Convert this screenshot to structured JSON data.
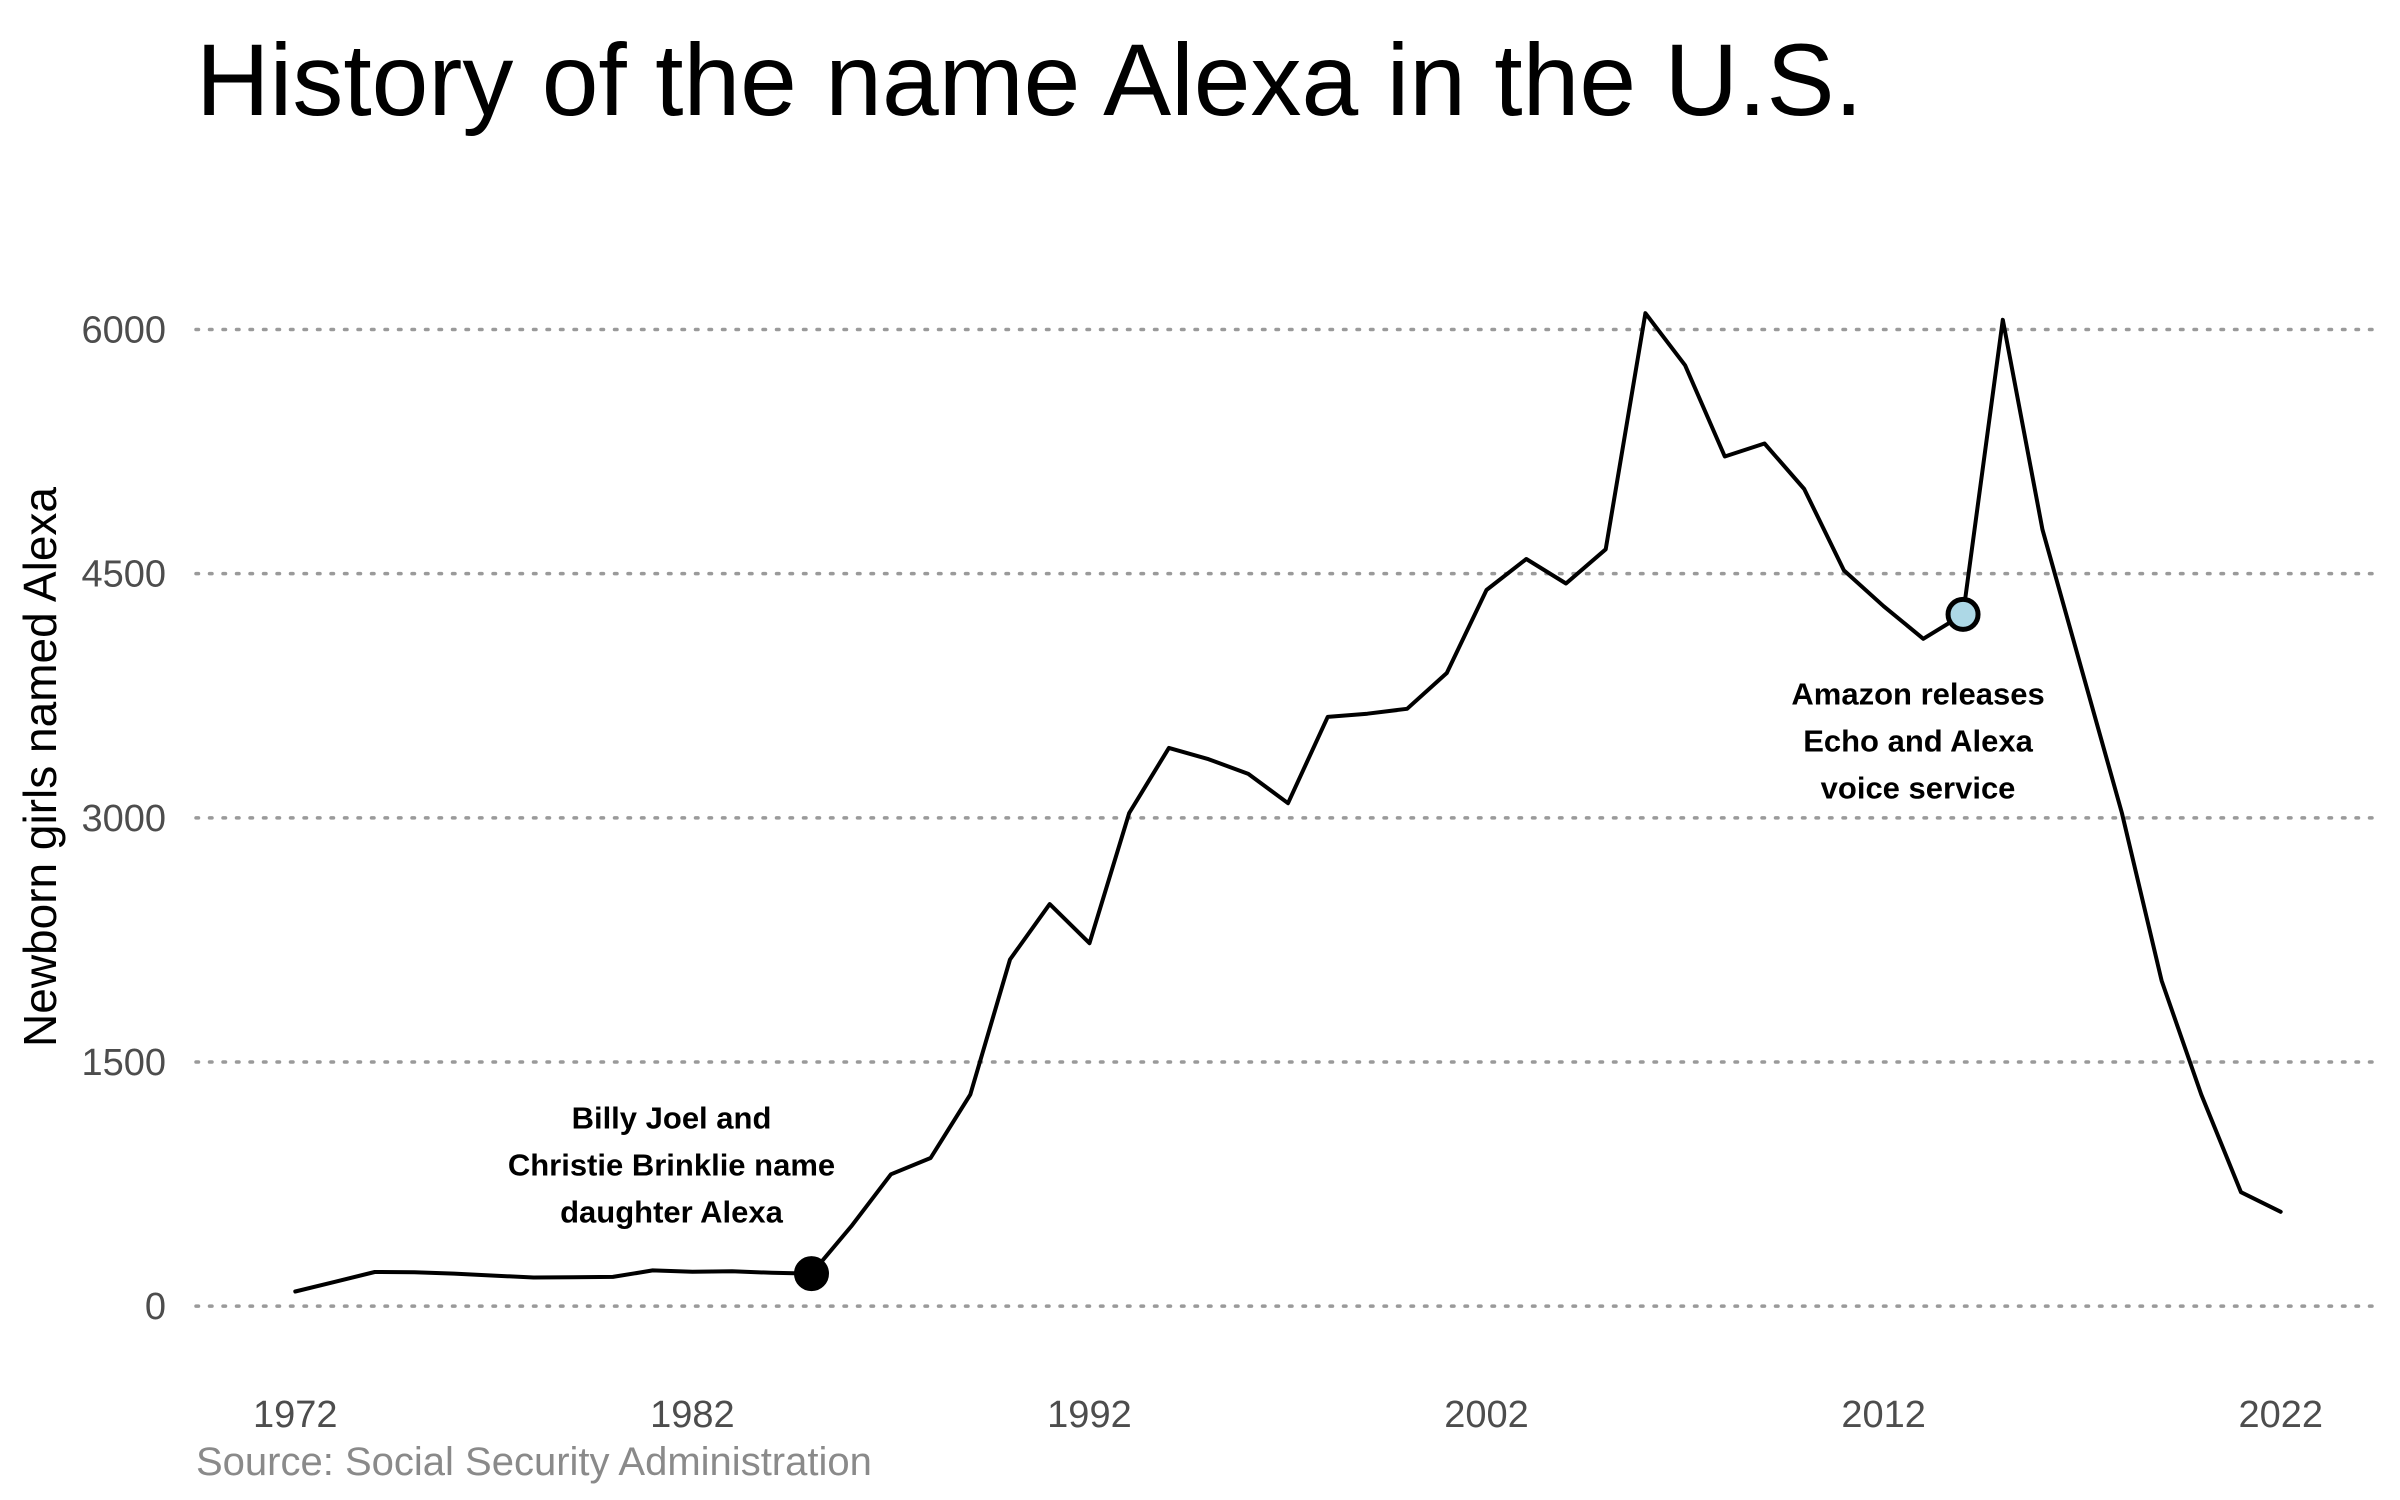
{
  "chart_data": {
    "type": "line",
    "title": "History of the name Alexa in the U.S.",
    "source": "Source: Social Security Administration",
    "xlabel": "",
    "ylabel": "Newborn girls named Alexa",
    "xlim": [
      1969.5,
      2024.5
    ],
    "ylim": [
      -300,
      6550
    ],
    "x_ticks": [
      1972,
      1982,
      1992,
      2002,
      2012,
      2022
    ],
    "y_ticks": [
      0,
      1500,
      3000,
      4500,
      6000
    ],
    "grid": "horizontal dotted",
    "line_color": "#000000",
    "series": [
      {
        "x": [
          1972,
          1973,
          1974,
          1975,
          1976,
          1977,
          1978,
          1979,
          1980,
          1981,
          1982,
          1983,
          1984,
          1985,
          1986,
          1987,
          1988,
          1989,
          1990,
          1991,
          1992,
          1993,
          1994,
          1995,
          1996,
          1997,
          1998,
          1999,
          2000,
          2001,
          2002,
          2003,
          2004,
          2005,
          2006,
          2007,
          2008,
          2009,
          2010,
          2011,
          2012,
          2013,
          2014,
          2015,
          2016,
          2017,
          2018,
          2019,
          2020,
          2021,
          2022
        ],
        "values": [
          90,
          150,
          210,
          208,
          200,
          188,
          176,
          178,
          180,
          220,
          212,
          215,
          205,
          200,
          490,
          810,
          910,
          1300,
          2130,
          2470,
          2230,
          3030,
          3430,
          3360,
          3270,
          3090,
          3620,
          3640,
          3670,
          3890,
          4400,
          4590,
          4440,
          4650,
          6100,
          5780,
          5220,
          5300,
          5020,
          4520,
          4300,
          4100,
          4250,
          6060,
          4770,
          3900,
          3030,
          2000,
          1300,
          700,
          580
        ]
      }
    ],
    "annotations": [
      {
        "x": 1985,
        "y": 200,
        "point_color": "#000000",
        "lines": [
          "Billy Joel and",
          "Christie Brinklie name",
          "daughter Alexa"
        ]
      },
      {
        "x": 2014,
        "y": 4250,
        "point_color": "#add8e6",
        "lines": [
          "Amazon releases",
          "Echo and Alexa",
          "voice service"
        ]
      }
    ]
  }
}
